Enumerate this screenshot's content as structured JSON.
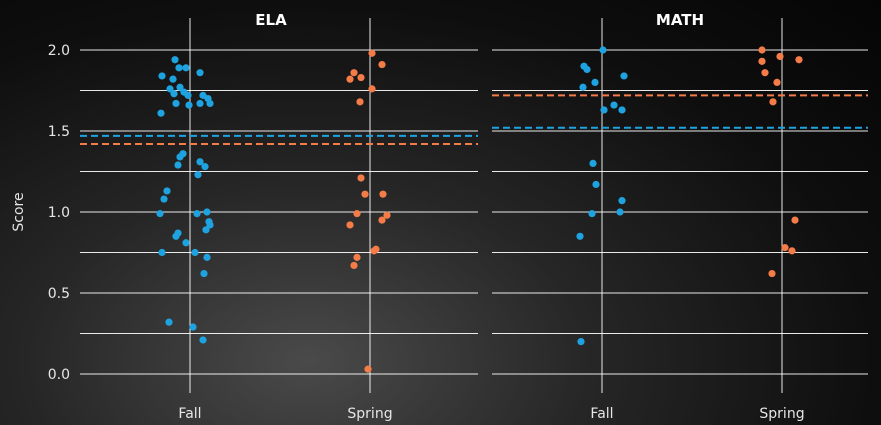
{
  "chart_data": {
    "type": "scatter",
    "ylabel": "Score",
    "ylim": [
      0,
      2.0
    ],
    "yticks": [
      "0.0",
      "0.5",
      "1.0",
      "1.5",
      "2.0"
    ],
    "yticks_values": [
      0,
      0.5,
      1.0,
      1.5,
      2.0
    ],
    "categories": [
      "Fall",
      "Spring"
    ],
    "grid": true,
    "colors": {
      "fall": "#1fa3e0",
      "spring": "#f47c48"
    },
    "panels": [
      {
        "title": "ELA",
        "fall_mean": 1.47,
        "spring_mean": 1.42,
        "series": [
          {
            "category": "Fall",
            "points": [
              {
                "x": -0.28,
                "y": 1.84
              },
              {
                "x": -0.29,
                "y": 1.61
              },
              {
                "x": -0.2,
                "y": 1.76
              },
              {
                "x": -0.17,
                "y": 1.82
              },
              {
                "x": -0.16,
                "y": 1.73
              },
              {
                "x": -0.15,
                "y": 1.94
              },
              {
                "x": -0.14,
                "y": 1.67
              },
              {
                "x": -0.11,
                "y": 1.89
              },
              {
                "x": -0.1,
                "y": 1.77
              },
              {
                "x": -0.06,
                "y": 1.74
              },
              {
                "x": -0.04,
                "y": 1.89
              },
              {
                "x": -0.02,
                "y": 1.72
              },
              {
                "x": -0.01,
                "y": 1.66
              },
              {
                "x": 0.1,
                "y": 1.86
              },
              {
                "x": 0.1,
                "y": 1.67
              },
              {
                "x": 0.13,
                "y": 1.72
              },
              {
                "x": 0.18,
                "y": 1.7
              },
              {
                "x": 0.2,
                "y": 1.67
              },
              {
                "x": -0.1,
                "y": 1.34
              },
              {
                "x": -0.07,
                "y": 1.36
              },
              {
                "x": -0.12,
                "y": 1.29
              },
              {
                "x": 0.1,
                "y": 1.31
              },
              {
                "x": 0.08,
                "y": 1.23
              },
              {
                "x": 0.15,
                "y": 1.28
              },
              {
                "x": -0.23,
                "y": 1.13
              },
              {
                "x": -0.26,
                "y": 1.08
              },
              {
                "x": -0.3,
                "y": 0.99
              },
              {
                "x": -0.14,
                "y": 0.85
              },
              {
                "x": -0.12,
                "y": 0.87
              },
              {
                "x": -0.04,
                "y": 0.81
              },
              {
                "x": 0.07,
                "y": 0.99
              },
              {
                "x": 0.17,
                "y": 1.0
              },
              {
                "x": 0.19,
                "y": 0.94
              },
              {
                "x": 0.2,
                "y": 0.92
              },
              {
                "x": 0.16,
                "y": 0.89
              },
              {
                "x": 0.05,
                "y": 0.75
              },
              {
                "x": -0.28,
                "y": 0.75
              },
              {
                "x": 0.17,
                "y": 0.72
              },
              {
                "x": 0.14,
                "y": 0.62
              },
              {
                "x": -0.21,
                "y": 0.32
              },
              {
                "x": 0.03,
                "y": 0.29
              },
              {
                "x": 0.13,
                "y": 0.21
              }
            ]
          },
          {
            "category": "Spring",
            "points": [
              {
                "x": -0.2,
                "y": 1.82
              },
              {
                "x": -0.16,
                "y": 1.86
              },
              {
                "x": -0.1,
                "y": 1.68
              },
              {
                "x": -0.09,
                "y": 1.83
              },
              {
                "x": 0.02,
                "y": 1.98
              },
              {
                "x": 0.02,
                "y": 1.76
              },
              {
                "x": 0.12,
                "y": 1.91
              },
              {
                "x": -0.09,
                "y": 1.21
              },
              {
                "x": -0.05,
                "y": 1.11
              },
              {
                "x": 0.13,
                "y": 1.11
              },
              {
                "x": -0.13,
                "y": 0.99
              },
              {
                "x": -0.2,
                "y": 0.92
              },
              {
                "x": 0.17,
                "y": 0.98
              },
              {
                "x": 0.12,
                "y": 0.95
              },
              {
                "x": -0.13,
                "y": 0.72
              },
              {
                "x": -0.16,
                "y": 0.67
              },
              {
                "x": 0.04,
                "y": 0.76
              },
              {
                "x": 0.06,
                "y": 0.77
              },
              {
                "x": -0.02,
                "y": 0.03
              }
            ]
          }
        ]
      },
      {
        "title": "MATH",
        "fall_mean": 1.52,
        "spring_mean": 1.72,
        "series": [
          {
            "category": "Fall",
            "points": [
              {
                "x": -0.18,
                "y": 1.9
              },
              {
                "x": -0.15,
                "y": 1.88
              },
              {
                "x": -0.19,
                "y": 1.77
              },
              {
                "x": -0.07,
                "y": 1.8
              },
              {
                "x": 0.01,
                "y": 2.0
              },
              {
                "x": 0.02,
                "y": 1.63
              },
              {
                "x": 0.12,
                "y": 1.66
              },
              {
                "x": 0.2,
                "y": 1.63
              },
              {
                "x": 0.22,
                "y": 1.84
              },
              {
                "x": -0.09,
                "y": 1.3
              },
              {
                "x": -0.06,
                "y": 1.17
              },
              {
                "x": 0.2,
                "y": 1.07
              },
              {
                "x": -0.1,
                "y": 0.99
              },
              {
                "x": 0.18,
                "y": 1.0
              },
              {
                "x": -0.22,
                "y": 0.85
              },
              {
                "x": -0.21,
                "y": 0.2
              }
            ]
          },
          {
            "category": "Spring",
            "points": [
              {
                "x": -0.2,
                "y": 2.0
              },
              {
                "x": -0.2,
                "y": 1.93
              },
              {
                "x": -0.17,
                "y": 1.86
              },
              {
                "x": -0.05,
                "y": 1.8
              },
              {
                "x": -0.09,
                "y": 1.68
              },
              {
                "x": -0.02,
                "y": 1.96
              },
              {
                "x": 0.17,
                "y": 1.94
              },
              {
                "x": 0.13,
                "y": 0.95
              },
              {
                "x": 0.03,
                "y": 0.78
              },
              {
                "x": 0.1,
                "y": 0.76
              },
              {
                "x": -0.1,
                "y": 0.62
              }
            ]
          }
        ]
      }
    ]
  }
}
